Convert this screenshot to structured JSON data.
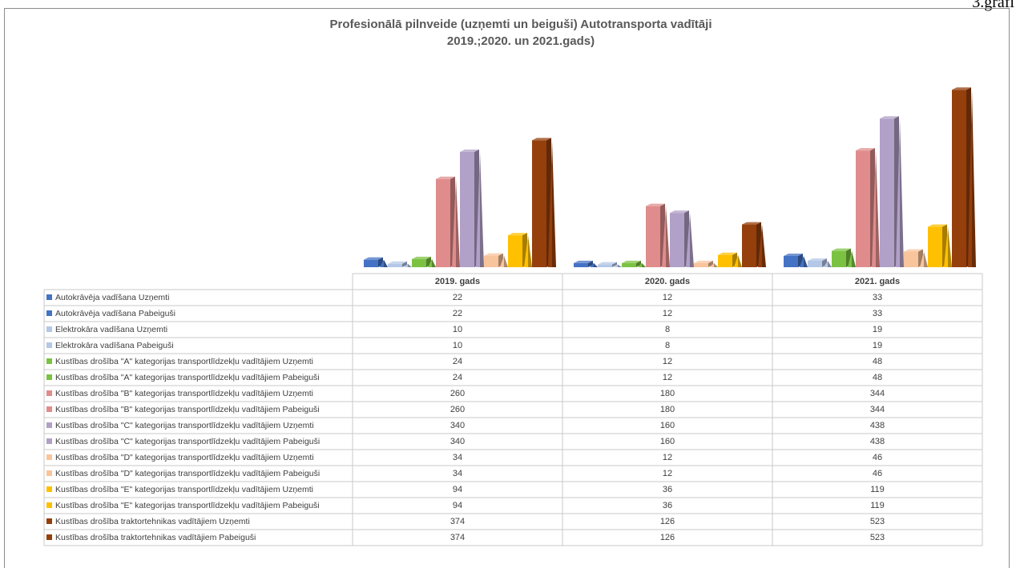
{
  "corner_label": "3.grafi",
  "chart_data": {
    "type": "bar",
    "title": "Profesionālā pilnveide (uzņemti un beiguši) Autotransporta vadītāji",
    "subtitle": "2019.;2020. un 2021.gads)",
    "categories": [
      "2019. gads",
      "2020. gads",
      "2021. gads"
    ],
    "data_table": true,
    "series": [
      {
        "name": "Autokrāvēja vadīšana Uzņemti",
        "color": "#4472c4",
        "shape": "box",
        "values": [
          22,
          12,
          33
        ]
      },
      {
        "name": "Autokrāvēja vadīšana Pabeiguši",
        "color": "#4472c4",
        "shape": "cone",
        "values": [
          22,
          12,
          33
        ]
      },
      {
        "name": "Elektrokāra vadīšana Uzņemti",
        "color": "#b4c7e7",
        "shape": "box",
        "values": [
          10,
          8,
          19
        ]
      },
      {
        "name": "Elektrokāra vadīšana Pabeiguši",
        "color": "#b4c7e7",
        "shape": "cone",
        "values": [
          10,
          8,
          19
        ]
      },
      {
        "name": "Kustības drošība \"A\" kategorijas transportlīdzekļu vadītājiem Uzņemti",
        "color": "#7cc242",
        "shape": "box",
        "values": [
          24,
          12,
          48
        ]
      },
      {
        "name": "Kustības drošība \"A\" kategorijas transportlīdzekļu vadītājiem Pabeiguši",
        "color": "#7cc242",
        "shape": "cone",
        "values": [
          24,
          12,
          48
        ]
      },
      {
        "name": "Kustības drošība \"B\" kategorijas transportlīdzekļu vadītājiem Uzņemti",
        "color": "#e08c8c",
        "shape": "box",
        "values": [
          260,
          180,
          344
        ]
      },
      {
        "name": "Kustības drošība \"B\" kategorijas transportlīdzekļu vadītājiem Pabeiguši",
        "color": "#e08c8c",
        "shape": "cone",
        "values": [
          260,
          180,
          344
        ]
      },
      {
        "name": "Kustības drošība \"C\" kategorijas transportlīdzekļu vadītājiem Uzņemti",
        "color": "#b1a0c7",
        "shape": "box",
        "values": [
          340,
          160,
          438
        ]
      },
      {
        "name": "Kustības drošība \"C\" kategorijas transportlīdzekļu vadītājiem Pabeiguši",
        "color": "#b1a0c7",
        "shape": "cone",
        "values": [
          340,
          160,
          438
        ]
      },
      {
        "name": "Kustības drošība \"D\" kategorijas transportlīdzekļu vadītājiem Uzņemti",
        "color": "#f8c49c",
        "shape": "box",
        "values": [
          34,
          12,
          46
        ]
      },
      {
        "name": "Kustības drošība \"D\" kategorijas transportlīdzekļu vadītājiem Pabeiguši",
        "color": "#f8c49c",
        "shape": "cone",
        "values": [
          34,
          12,
          46
        ]
      },
      {
        "name": "Kustības drošība \"E\" kategorijas transportlīdzekļu vadītājiem Uzņemti",
        "color": "#ffc000",
        "shape": "box",
        "values": [
          94,
          36,
          119
        ]
      },
      {
        "name": "Kustības drošība \"E\" kategorijas transportlīdzekļu vadītājiem Pabeiguši",
        "color": "#ffc000",
        "shape": "cone",
        "values": [
          94,
          36,
          119
        ]
      },
      {
        "name": "Kustības drošība traktortehnikas vadītājiem Uzņemti",
        "color": "#953f0c",
        "shape": "box",
        "values": [
          374,
          126,
          523
        ]
      },
      {
        "name": "Kustības drošība traktortehnikas vadītājiem Pabeiguši",
        "color": "#953f0c",
        "shape": "cone",
        "values": [
          374,
          126,
          523
        ]
      }
    ]
  }
}
